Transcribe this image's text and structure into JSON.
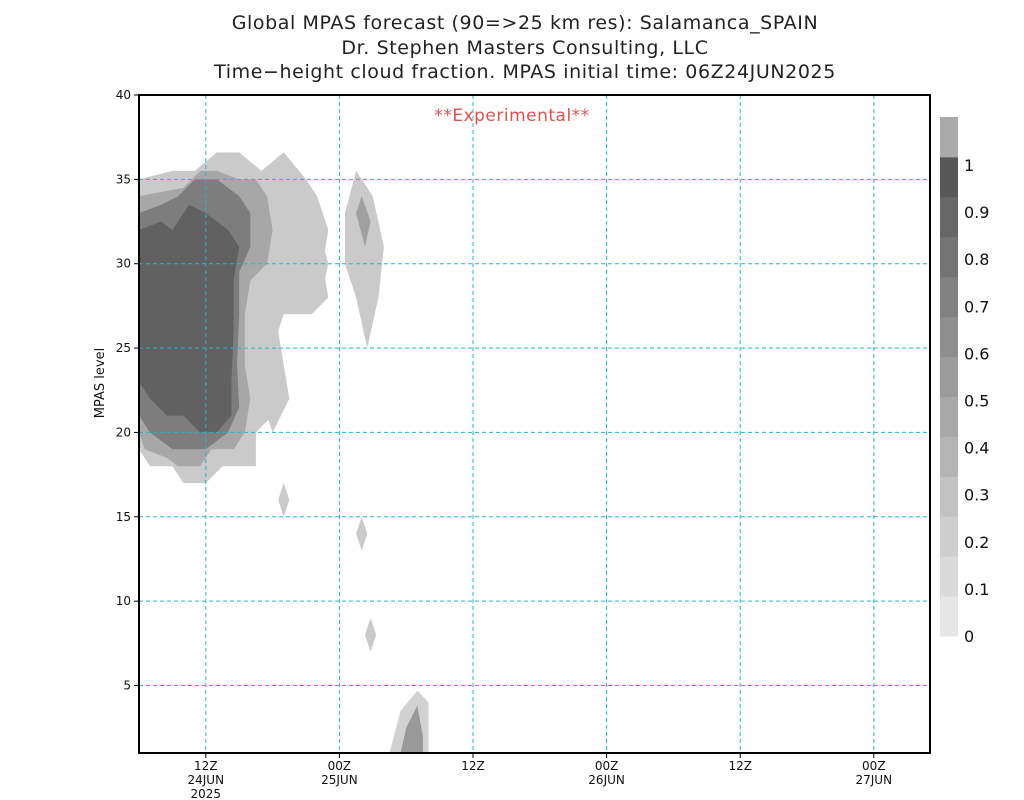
{
  "header": {
    "title_line1": "Global MPAS forecast (90=>25 km res): Salamanca_SPAIN",
    "title_line2": "Dr. Stephen Masters Consulting, LLC",
    "title_line3": "Time−height cloud fraction.   MPAS initial time: 06Z24JUN2025"
  },
  "chart_data": {
    "type": "heatmap",
    "title": "Time−height cloud fraction.",
    "xlabel": "",
    "ylabel": "MPAS level",
    "annotation": "**Experimental**",
    "ylim": [
      1,
      40
    ],
    "xlim_hours_from_init": [
      0,
      84
    ],
    "y_ticks": [
      5,
      10,
      15,
      20,
      25,
      30,
      35,
      40
    ],
    "x_ticks": [
      {
        "hours": 6,
        "line1": "12Z",
        "line2": "24JUN",
        "line3": "2025"
      },
      {
        "hours": 18,
        "line1": "00Z",
        "line2": "25JUN",
        "line3": ""
      },
      {
        "hours": 30,
        "line1": "12Z",
        "line2": "",
        "line3": ""
      },
      {
        "hours": 42,
        "line1": "00Z",
        "line2": "26JUN",
        "line3": ""
      },
      {
        "hours": 54,
        "line1": "12Z",
        "line2": "",
        "line3": ""
      },
      {
        "hours": 66,
        "line1": "00Z",
        "line2": "27JUN",
        "line3": ""
      }
    ],
    "grid": true,
    "legend_placement": "right",
    "colorbar": {
      "labels": [
        "0",
        "0.1",
        "0.2",
        "0.3",
        "0.4",
        "0.5",
        "0.6",
        "0.7",
        "0.8",
        "0.9",
        "1"
      ],
      "colors": [
        "#e6e6e6",
        "#dadada",
        "#cecece",
        "#c2c2c2",
        "#b4b4b4",
        "#a8a8a8",
        "#9b9b9b",
        "#8e8e8e",
        "#818181",
        "#747474",
        "#666666",
        "#585858",
        "#aaaaaa"
      ]
    },
    "cloud_regions": [
      {
        "value": 0.2,
        "points": [
          [
            0,
            35
          ],
          [
            3,
            35.5
          ],
          [
            5,
            35.5
          ],
          [
            7,
            36.6
          ],
          [
            9,
            36.6
          ],
          [
            11,
            35.5
          ],
          [
            13,
            36.6
          ],
          [
            15,
            35
          ],
          [
            16,
            34
          ],
          [
            17,
            32
          ],
          [
            16.5,
            30
          ],
          [
            17,
            28
          ],
          [
            15.5,
            27
          ],
          [
            13,
            27
          ],
          [
            12,
            25
          ],
          [
            13,
            23
          ],
          [
            12,
            21
          ],
          [
            10.5,
            20
          ],
          [
            10.5,
            18
          ],
          [
            7.5,
            18
          ],
          [
            6,
            17
          ],
          [
            4,
            17
          ],
          [
            3,
            18
          ],
          [
            1,
            18
          ],
          [
            0,
            19
          ]
        ]
      },
      {
        "value": 0.45,
        "points": [
          [
            0,
            34
          ],
          [
            4,
            34.5
          ],
          [
            5.5,
            35.5
          ],
          [
            7,
            35.5
          ],
          [
            9,
            35
          ],
          [
            10.5,
            35
          ],
          [
            11.5,
            34
          ],
          [
            12,
            32
          ],
          [
            11.5,
            30
          ],
          [
            10,
            29
          ],
          [
            9.5,
            27
          ],
          [
            9.5,
            24
          ],
          [
            10,
            22
          ],
          [
            9.5,
            20
          ],
          [
            8.5,
            19
          ],
          [
            6.5,
            19
          ],
          [
            5.5,
            18
          ],
          [
            3.5,
            18
          ],
          [
            2.5,
            18.5
          ],
          [
            0.5,
            19
          ],
          [
            0,
            20
          ]
        ]
      },
      {
        "value": 0.75,
        "points": [
          [
            0,
            33
          ],
          [
            2,
            33.5
          ],
          [
            3.5,
            34
          ],
          [
            5,
            35
          ],
          [
            7,
            35
          ],
          [
            9,
            34
          ],
          [
            10,
            33
          ],
          [
            10,
            31
          ],
          [
            9,
            29.5
          ],
          [
            9,
            27
          ],
          [
            8.8,
            24
          ],
          [
            9,
            21.5
          ],
          [
            8,
            20
          ],
          [
            6,
            19
          ],
          [
            4.5,
            19
          ],
          [
            3,
            19
          ],
          [
            1,
            20
          ],
          [
            0,
            21
          ]
        ]
      },
      {
        "value": 0.95,
        "points": [
          [
            0,
            32
          ],
          [
            2,
            32.5
          ],
          [
            3,
            32
          ],
          [
            4.5,
            33.5
          ],
          [
            6,
            33
          ],
          [
            8,
            32
          ],
          [
            9,
            31
          ],
          [
            8.5,
            29
          ],
          [
            8.5,
            26
          ],
          [
            8.3,
            23
          ],
          [
            8.3,
            21
          ],
          [
            7,
            20
          ],
          [
            5.5,
            20
          ],
          [
            4,
            21
          ],
          [
            2.5,
            21
          ],
          [
            1,
            22
          ],
          [
            0,
            23
          ]
        ]
      },
      {
        "value": 0.2,
        "points": [
          [
            14,
            32
          ],
          [
            15,
            33
          ],
          [
            16,
            32.5
          ],
          [
            17,
            30
          ],
          [
            16.5,
            28.5
          ],
          [
            15,
            28
          ],
          [
            14.5,
            29.5
          ]
        ]
      },
      {
        "value": 0.2,
        "points": [
          [
            18.5,
            33
          ],
          [
            19.5,
            35.5
          ],
          [
            21,
            34
          ],
          [
            22,
            31
          ],
          [
            21.5,
            28
          ],
          [
            20.5,
            25
          ],
          [
            19.5,
            28
          ],
          [
            18.5,
            30
          ]
        ]
      },
      {
        "value": 0.5,
        "points": [
          [
            19.5,
            33
          ],
          [
            20,
            34
          ],
          [
            20.8,
            32.5
          ],
          [
            20.3,
            31
          ]
        ]
      },
      {
        "value": 0.2,
        "points": [
          [
            11,
            25
          ],
          [
            12.5,
            26
          ],
          [
            13.5,
            22
          ],
          [
            12,
            20
          ],
          [
            11,
            22
          ]
        ]
      },
      {
        "value": 0.2,
        "points": [
          [
            12.5,
            16
          ],
          [
            13,
            17
          ],
          [
            13.5,
            16
          ],
          [
            13,
            15
          ]
        ]
      },
      {
        "value": 0.2,
        "points": [
          [
            19.5,
            14
          ],
          [
            20,
            15
          ],
          [
            20.5,
            14
          ],
          [
            20,
            13
          ]
        ]
      },
      {
        "value": 0.2,
        "points": [
          [
            20.3,
            8
          ],
          [
            20.8,
            9
          ],
          [
            21.3,
            8
          ],
          [
            20.8,
            7
          ]
        ]
      },
      {
        "value": 0.15,
        "points": [
          [
            22.5,
            1
          ],
          [
            23.5,
            3.5
          ],
          [
            25,
            4.7
          ],
          [
            26,
            4
          ],
          [
            26,
            1
          ]
        ]
      },
      {
        "value": 0.55,
        "points": [
          [
            23.5,
            1
          ],
          [
            24,
            2.5
          ],
          [
            25,
            3.8
          ],
          [
            25.5,
            2
          ],
          [
            25.5,
            1
          ]
        ]
      }
    ]
  }
}
